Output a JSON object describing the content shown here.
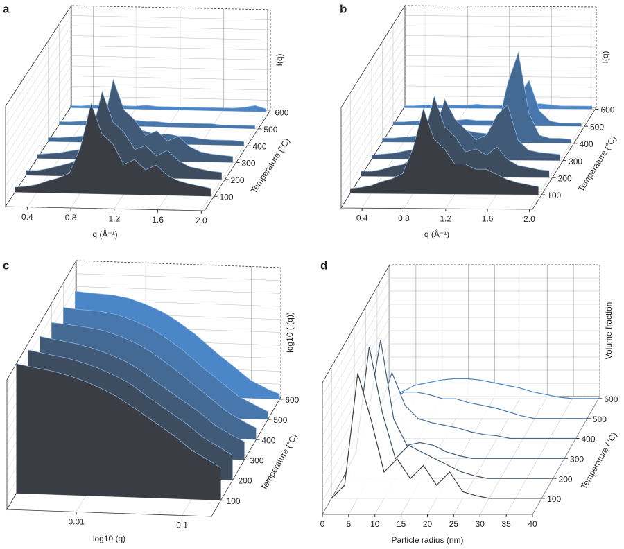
{
  "chart_data": [
    {
      "type": "waterfall3d",
      "panel": "a",
      "xlabel": "q (Å⁻¹)",
      "ylabel": "Temperature (°C)",
      "zlabel": "I(q)",
      "xlim": [
        0.2,
        2.03
      ],
      "xticks": [
        0.4,
        0.8,
        1.2,
        1.6,
        {
          "value": 2,
          "label": "2.0"
        }
      ],
      "ylim": [
        15,
        610
      ],
      "yticks": [
        100,
        200,
        300,
        400,
        500,
        600
      ],
      "zlim": [
        0,
        1
      ],
      "colors": [
        "#3a3d43",
        "#4a86c8"
      ],
      "filled": true,
      "x": [
        0.2,
        0.3,
        0.4,
        0.5,
        0.6,
        0.7,
        0.8,
        0.9,
        1.0,
        1.1,
        1.2,
        1.3,
        1.4,
        1.5,
        1.6,
        1.7,
        1.8,
        1.9,
        2.0
      ],
      "traces": [
        {
          "temperature": 100,
          "values": [
            0.05,
            0.06,
            0.08,
            0.12,
            0.15,
            0.2,
            0.45,
            0.9,
            0.6,
            0.5,
            0.3,
            0.35,
            0.25,
            0.3,
            0.2,
            0.15,
            0.12,
            0.1,
            0.08
          ]
        },
        {
          "temperature": 200,
          "values": [
            0.05,
            0.05,
            0.07,
            0.1,
            0.13,
            0.18,
            0.4,
            0.85,
            0.55,
            0.45,
            0.28,
            0.32,
            0.22,
            0.28,
            0.18,
            0.12,
            0.1,
            0.08,
            0.07
          ]
        },
        {
          "temperature": 300,
          "values": [
            0.04,
            0.05,
            0.06,
            0.08,
            0.1,
            0.15,
            0.3,
            0.8,
            0.5,
            0.4,
            0.25,
            0.3,
            0.2,
            0.25,
            0.15,
            0.1,
            0.08,
            0.07,
            0.06
          ]
        },
        {
          "temperature": 400,
          "values": [
            0.04,
            0.04,
            0.05,
            0.06,
            0.07,
            0.08,
            0.12,
            0.2,
            0.15,
            0.12,
            0.09,
            0.1,
            0.08,
            0.08,
            0.06,
            0.05,
            0.05,
            0.05,
            0.04
          ]
        },
        {
          "temperature": 500,
          "values": [
            0.03,
            0.03,
            0.04,
            0.04,
            0.04,
            0.05,
            0.05,
            0.06,
            0.05,
            0.05,
            0.04,
            0.04,
            0.04,
            0.04,
            0.04,
            0.03,
            0.03,
            0.03,
            0.03
          ]
        },
        {
          "temperature": 600,
          "values": [
            0.02,
            0.02,
            0.03,
            0.03,
            0.03,
            0.03,
            0.03,
            0.04,
            0.03,
            0.03,
            0.03,
            0.03,
            0.03,
            0.03,
            0.03,
            0.03,
            0.04,
            0.06,
            0.03
          ]
        }
      ]
    },
    {
      "type": "waterfall3d",
      "panel": "b",
      "xlabel": "q (Å⁻¹)",
      "ylabel": "Temperature (°C)",
      "zlabel": "I(q)",
      "xlim": [
        0.2,
        2.03
      ],
      "xticks": [
        0.4,
        0.8,
        1.2,
        1.6,
        {
          "value": 2,
          "label": "2.0"
        }
      ],
      "ylim": [
        15,
        610
      ],
      "yticks": [
        100,
        200,
        300,
        400,
        500,
        600
      ],
      "zlim": [
        0,
        1
      ],
      "colors": [
        "#3a3d43",
        "#4a86c8"
      ],
      "filled": true,
      "x": [
        0.2,
        0.3,
        0.4,
        0.5,
        0.6,
        0.7,
        0.8,
        0.9,
        1.0,
        1.1,
        1.2,
        1.3,
        1.4,
        1.5,
        1.6,
        1.7,
        1.8,
        1.9,
        2.0
      ],
      "traces": [
        {
          "temperature": 100,
          "values": [
            0.05,
            0.06,
            0.08,
            0.12,
            0.15,
            0.2,
            0.45,
            0.85,
            0.55,
            0.45,
            0.3,
            0.3,
            0.25,
            0.25,
            0.2,
            0.15,
            0.12,
            0.1,
            0.08
          ]
        },
        {
          "temperature": 200,
          "values": [
            0.05,
            0.05,
            0.07,
            0.1,
            0.12,
            0.18,
            0.38,
            0.8,
            0.5,
            0.4,
            0.25,
            0.28,
            0.22,
            0.3,
            0.18,
            0.12,
            0.1,
            0.08,
            0.07
          ]
        },
        {
          "temperature": 300,
          "values": [
            0.04,
            0.05,
            0.06,
            0.08,
            0.1,
            0.14,
            0.28,
            0.6,
            0.4,
            0.3,
            0.2,
            0.25,
            0.45,
            0.55,
            0.2,
            0.1,
            0.08,
            0.07,
            0.06
          ]
        },
        {
          "temperature": 400,
          "values": [
            0.04,
            0.04,
            0.05,
            0.06,
            0.07,
            0.08,
            0.1,
            0.15,
            0.12,
            0.1,
            0.09,
            0.15,
            0.6,
            0.9,
            0.3,
            0.08,
            0.05,
            0.05,
            0.04
          ]
        },
        {
          "temperature": 500,
          "values": [
            0.03,
            0.03,
            0.04,
            0.04,
            0.04,
            0.05,
            0.05,
            0.06,
            0.05,
            0.05,
            0.05,
            0.08,
            0.3,
            0.45,
            0.15,
            0.05,
            0.03,
            0.03,
            0.03
          ]
        },
        {
          "temperature": 600,
          "values": [
            0.02,
            0.02,
            0.03,
            0.03,
            0.03,
            0.03,
            0.03,
            0.04,
            0.03,
            0.03,
            0.03,
            0.03,
            0.04,
            0.05,
            0.04,
            0.03,
            0.03,
            0.03,
            0.03
          ]
        }
      ]
    },
    {
      "type": "waterfall3d",
      "panel": "c",
      "xlabel": "log10 (q)",
      "ylabel": "Temperature (°C)",
      "zlabel": "log10 (I(q))",
      "xscale": "log",
      "xlim": [
        0.0022,
        0.19
      ],
      "xticks": [
        0.01,
        0.1
      ],
      "ylim": [
        20,
        610
      ],
      "yticks": [
        100,
        200,
        300,
        400,
        500,
        600
      ],
      "zlim": [
        0,
        1
      ],
      "colors": [
        "#3a3d43",
        "#4a86c8"
      ],
      "filled": true,
      "x": [
        0.0022,
        0.003,
        0.005,
        0.007,
        0.01,
        0.015,
        0.02,
        0.03,
        0.05,
        0.07,
        0.1,
        0.15,
        0.19
      ],
      "traces": [
        {
          "temperature": 100,
          "values": [
            1.0,
            0.98,
            0.95,
            0.92,
            0.88,
            0.82,
            0.77,
            0.68,
            0.56,
            0.48,
            0.38,
            0.3,
            0.25
          ]
        },
        {
          "temperature": 200,
          "values": [
            0.95,
            0.93,
            0.9,
            0.87,
            0.83,
            0.77,
            0.72,
            0.62,
            0.5,
            0.42,
            0.32,
            0.24,
            0.19
          ]
        },
        {
          "temperature": 300,
          "values": [
            0.9,
            0.88,
            0.85,
            0.82,
            0.78,
            0.72,
            0.66,
            0.56,
            0.44,
            0.36,
            0.26,
            0.18,
            0.14
          ]
        },
        {
          "temperature": 400,
          "values": [
            0.85,
            0.84,
            0.82,
            0.8,
            0.76,
            0.7,
            0.64,
            0.54,
            0.4,
            0.31,
            0.21,
            0.13,
            0.09
          ]
        },
        {
          "temperature": 500,
          "values": [
            0.81,
            0.8,
            0.79,
            0.77,
            0.73,
            0.67,
            0.61,
            0.51,
            0.36,
            0.27,
            0.17,
            0.1,
            0.06
          ]
        },
        {
          "temperature": 600,
          "values": [
            0.78,
            0.77,
            0.76,
            0.74,
            0.7,
            0.64,
            0.58,
            0.48,
            0.33,
            0.24,
            0.14,
            0.07,
            0.04
          ]
        }
      ]
    },
    {
      "type": "waterfall3d",
      "panel": "d",
      "xlabel": "Particle radius (nm)",
      "ylabel": "Temperature (°C)",
      "zlabel": "Volume fraction",
      "xlim": [
        0,
        40
      ],
      "xticks": [
        0,
        5,
        10,
        15,
        20,
        25,
        30,
        35,
        40
      ],
      "ylim": [
        20,
        610
      ],
      "yticks": [
        100,
        200,
        300,
        400,
        500,
        600
      ],
      "zlim": [
        0,
        1
      ],
      "colors": [
        "#3a3d43",
        "#4a86c8"
      ],
      "filled": false,
      "x": [
        0,
        2.5,
        5,
        7.5,
        10,
        12.5,
        15,
        17.5,
        20,
        22.5,
        25,
        27.5,
        30,
        32.5,
        35,
        37.5,
        40
      ],
      "traces": [
        {
          "temperature": 100,
          "values": [
            0,
            0.1,
            0.95,
            0.6,
            0.2,
            0.3,
            0.15,
            0.25,
            0.1,
            0.2,
            0.05,
            0.02,
            0,
            0,
            0,
            0,
            0
          ]
        },
        {
          "temperature": 200,
          "values": [
            0,
            0.2,
            1.0,
            0.5,
            0.15,
            0.25,
            0.2,
            0.15,
            0.1,
            0.05,
            0.02,
            0,
            0,
            0,
            0,
            0,
            0
          ]
        },
        {
          "temperature": 300,
          "values": [
            0,
            0.3,
            0.9,
            0.3,
            0.1,
            0.12,
            0.1,
            0.05,
            0.02,
            0,
            0,
            0,
            0,
            0,
            0,
            0,
            0
          ]
        },
        {
          "temperature": 400,
          "values": [
            0,
            0.2,
            0.5,
            0.25,
            0.15,
            0.12,
            0.1,
            0.08,
            0.05,
            0.03,
            0.02,
            0,
            0,
            0,
            0,
            0,
            0
          ]
        },
        {
          "temperature": 500,
          "values": [
            0,
            0.1,
            0.2,
            0.2,
            0.18,
            0.15,
            0.15,
            0.12,
            0.1,
            0.08,
            0.05,
            0.02,
            0,
            0,
            0,
            0,
            0
          ]
        },
        {
          "temperature": 600,
          "values": [
            0,
            0.05,
            0.1,
            0.12,
            0.14,
            0.15,
            0.15,
            0.14,
            0.12,
            0.1,
            0.08,
            0.05,
            0.03,
            0.01,
            0,
            0,
            0
          ]
        }
      ]
    }
  ]
}
